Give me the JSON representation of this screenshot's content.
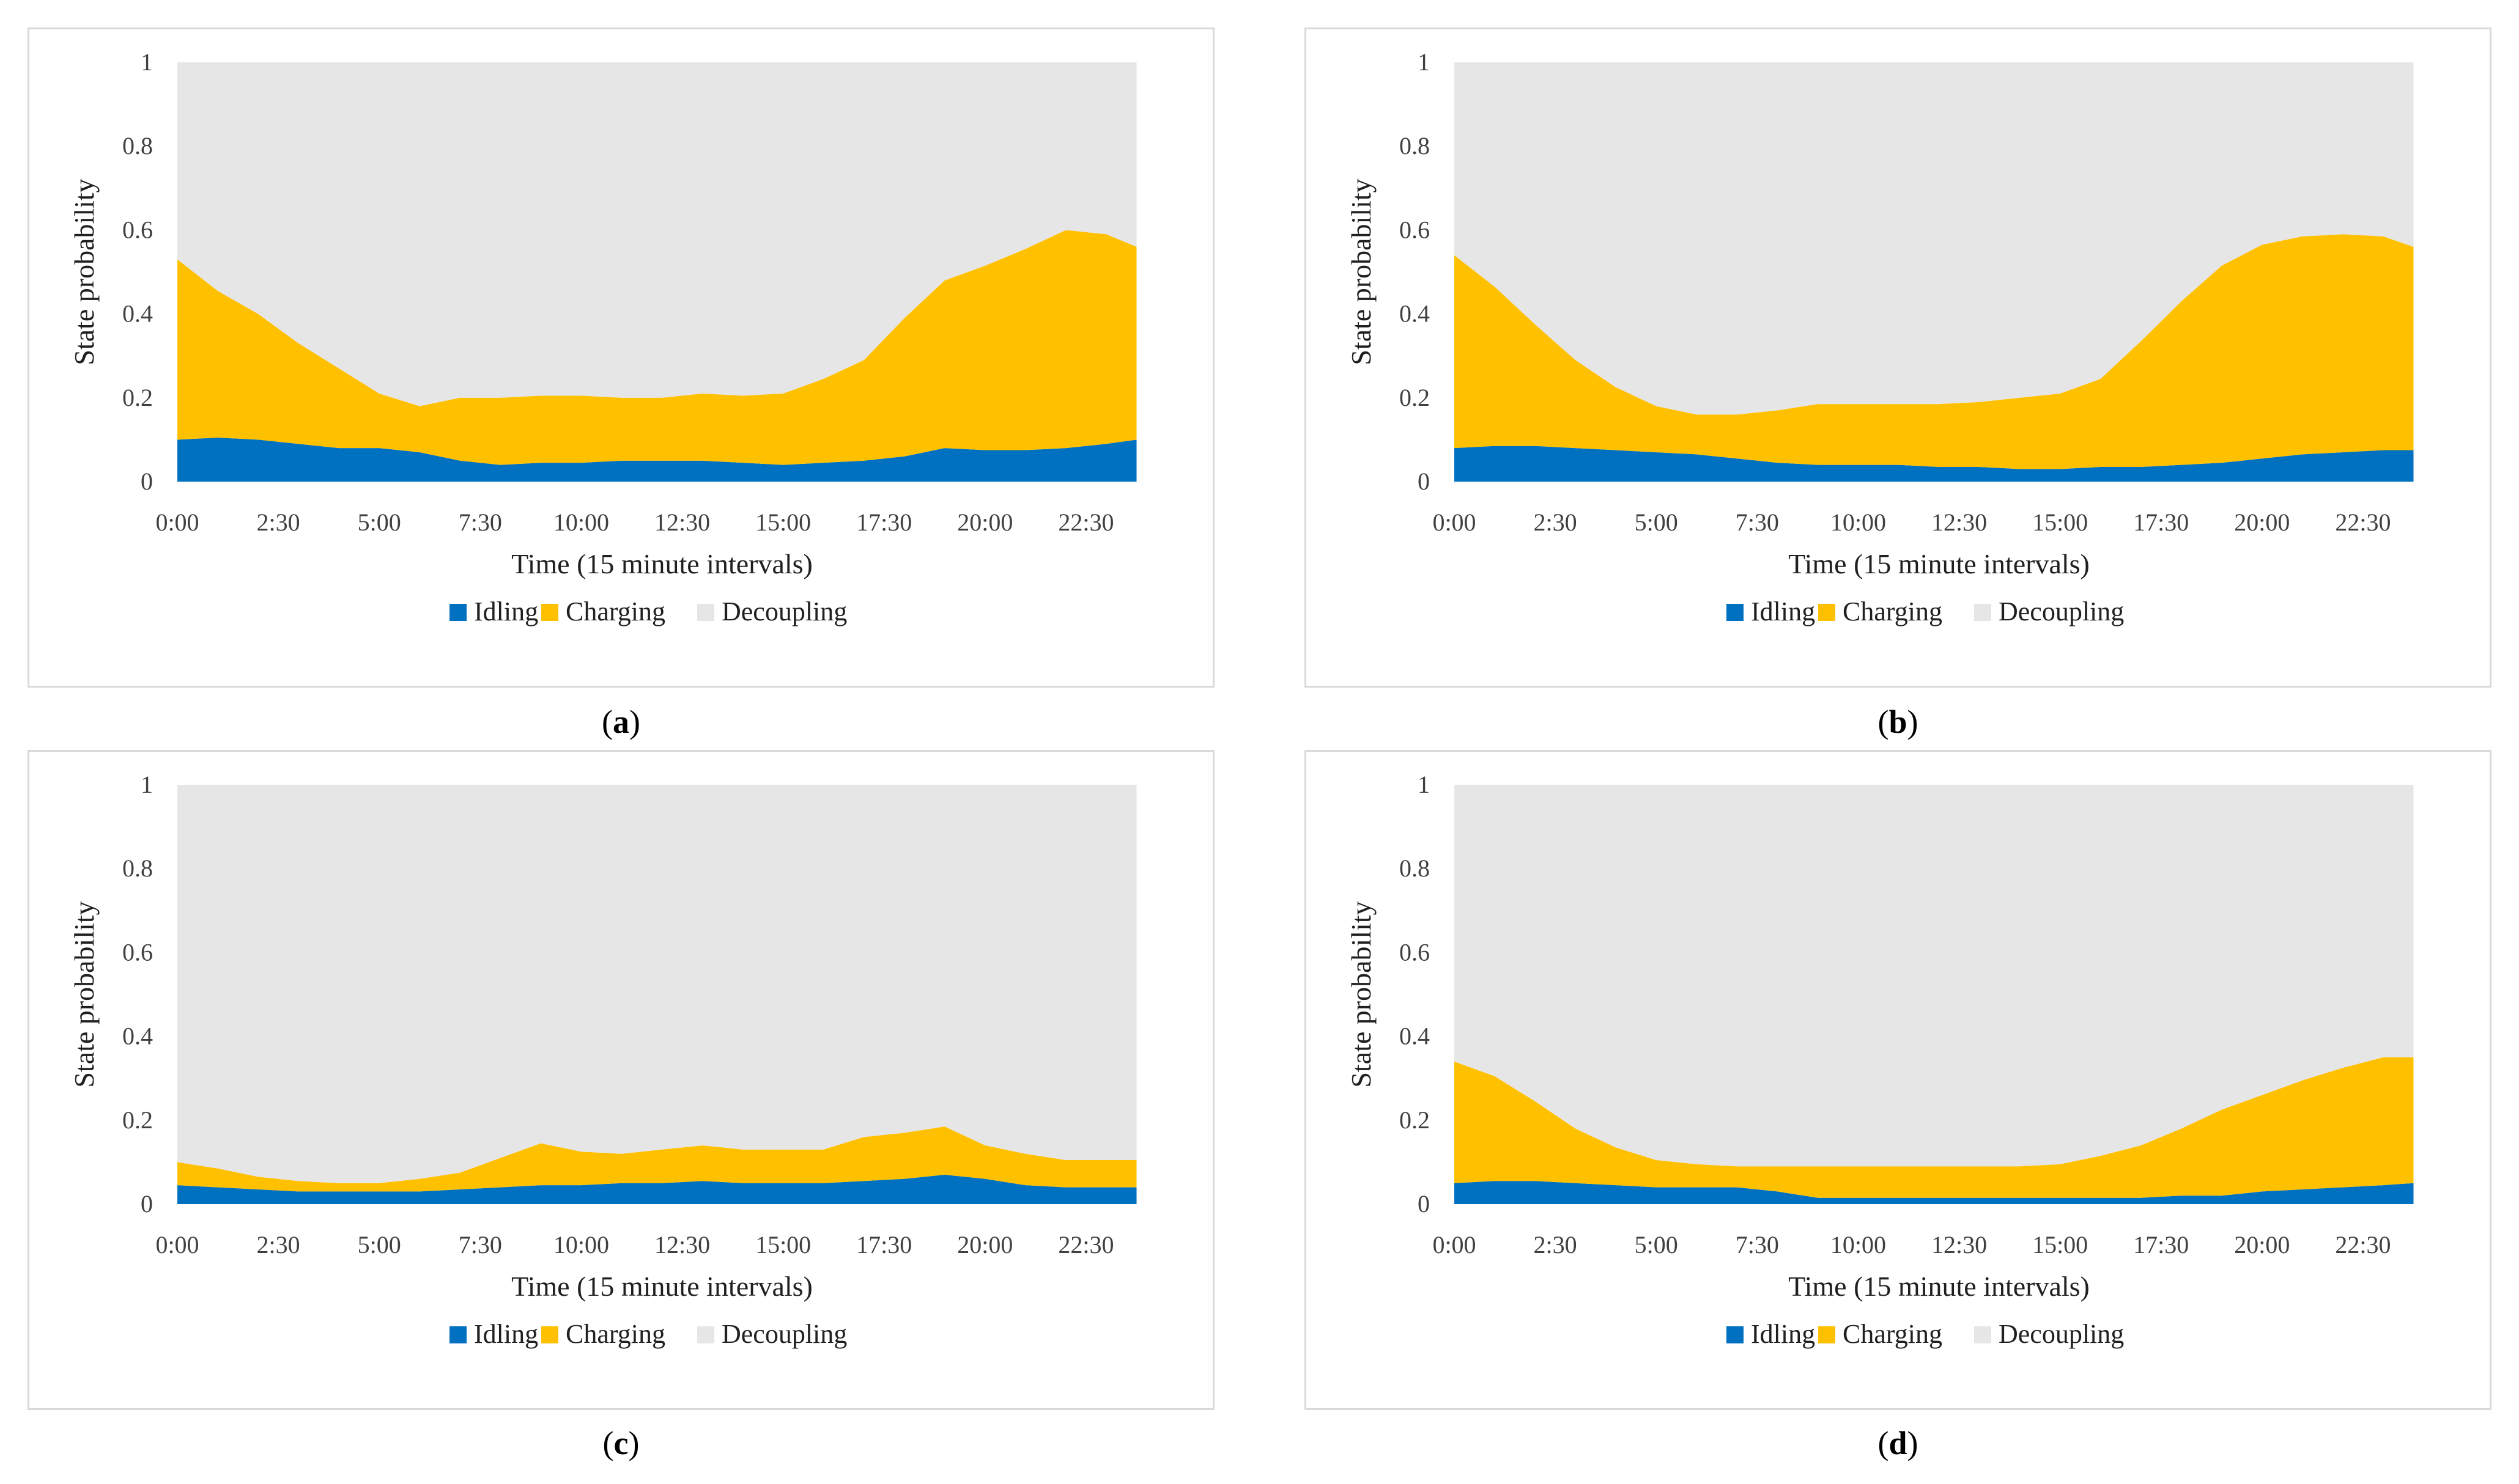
{
  "colors": {
    "idling": "#0070c0",
    "charging": "#ffc000",
    "decoupling": "#e7e6e6"
  },
  "panels": [
    {
      "id": "a",
      "caption_letter": "a"
    },
    {
      "id": "b",
      "caption_letter": "b"
    },
    {
      "id": "c",
      "caption_letter": "c"
    },
    {
      "id": "d",
      "caption_letter": "d"
    }
  ],
  "chart_data": [
    {
      "type": "area",
      "stacked": true,
      "panel": "a",
      "xlabel": "Time (15 minute intervals)",
      "ylabel": "State probability",
      "ylim": [
        0,
        1
      ],
      "yticks": [
        "0",
        "0.2",
        "0.4",
        "0.6",
        "0.8",
        "1"
      ],
      "xticks": [
        "0:00",
        "2:30",
        "5:00",
        "7:30",
        "10:00",
        "12:30",
        "15:00",
        "17:30",
        "20:00",
        "22:30"
      ],
      "x_hours": [
        0,
        1,
        2,
        3,
        4,
        5,
        6,
        7,
        8,
        9,
        10,
        11,
        12,
        13,
        14,
        15,
        16,
        17,
        18,
        19,
        20,
        21,
        22,
        23,
        23.75
      ],
      "series": [
        {
          "name": "Idling",
          "values": [
            0.1,
            0.105,
            0.1,
            0.09,
            0.08,
            0.08,
            0.07,
            0.05,
            0.04,
            0.045,
            0.045,
            0.05,
            0.05,
            0.05,
            0.045,
            0.04,
            0.045,
            0.05,
            0.06,
            0.08,
            0.075,
            0.075,
            0.08,
            0.09,
            0.1
          ]
        },
        {
          "name": "Charging",
          "values": [
            0.43,
            0.35,
            0.3,
            0.24,
            0.19,
            0.13,
            0.11,
            0.15,
            0.16,
            0.16,
            0.16,
            0.15,
            0.15,
            0.16,
            0.16,
            0.17,
            0.2,
            0.24,
            0.33,
            0.4,
            0.44,
            0.48,
            0.52,
            0.5,
            0.46
          ]
        },
        {
          "name": "Decoupling",
          "values": [
            0.47,
            0.545,
            0.6,
            0.67,
            0.73,
            0.79,
            0.82,
            0.8,
            0.8,
            0.795,
            0.795,
            0.8,
            0.8,
            0.79,
            0.795,
            0.79,
            0.755,
            0.71,
            0.61,
            0.52,
            0.485,
            0.445,
            0.4,
            0.41,
            0.44
          ]
        }
      ],
      "legend": [
        "Idling",
        "Charging",
        "Decoupling"
      ],
      "legend_position": "bottom"
    },
    {
      "type": "area",
      "stacked": true,
      "panel": "b",
      "xlabel": "Time (15 minute intervals)",
      "ylabel": "State probability",
      "ylim": [
        0,
        1
      ],
      "yticks": [
        "0",
        "0.2",
        "0.4",
        "0.6",
        "0.8",
        "1"
      ],
      "xticks": [
        "0:00",
        "2:30",
        "5:00",
        "7:30",
        "10:00",
        "12:30",
        "15:00",
        "17:30",
        "20:00",
        "22:30"
      ],
      "x_hours": [
        0,
        1,
        2,
        3,
        4,
        5,
        6,
        7,
        8,
        9,
        10,
        11,
        12,
        13,
        14,
        15,
        16,
        17,
        18,
        19,
        20,
        21,
        22,
        23,
        23.75
      ],
      "series": [
        {
          "name": "Idling",
          "values": [
            0.08,
            0.085,
            0.085,
            0.08,
            0.075,
            0.07,
            0.065,
            0.055,
            0.045,
            0.04,
            0.04,
            0.04,
            0.035,
            0.035,
            0.03,
            0.03,
            0.035,
            0.035,
            0.04,
            0.045,
            0.055,
            0.065,
            0.07,
            0.075,
            0.075
          ]
        },
        {
          "name": "Charging",
          "values": [
            0.46,
            0.38,
            0.29,
            0.21,
            0.15,
            0.11,
            0.095,
            0.105,
            0.125,
            0.145,
            0.145,
            0.145,
            0.15,
            0.155,
            0.17,
            0.18,
            0.21,
            0.3,
            0.39,
            0.47,
            0.51,
            0.52,
            0.52,
            0.51,
            0.485
          ]
        },
        {
          "name": "Decoupling",
          "values": [
            0.46,
            0.535,
            0.625,
            0.71,
            0.775,
            0.82,
            0.84,
            0.84,
            0.83,
            0.815,
            0.815,
            0.815,
            0.815,
            0.81,
            0.8,
            0.79,
            0.755,
            0.665,
            0.57,
            0.485,
            0.435,
            0.415,
            0.41,
            0.415,
            0.44
          ]
        }
      ],
      "legend": [
        "Idling",
        "Charging",
        "Decoupling"
      ],
      "legend_position": "bottom"
    },
    {
      "type": "area",
      "stacked": true,
      "panel": "c",
      "xlabel": "Time (15 minute intervals)",
      "ylabel": "State probability",
      "ylim": [
        0,
        1
      ],
      "yticks": [
        "0",
        "0.2",
        "0.4",
        "0.6",
        "0.8",
        "1"
      ],
      "xticks": [
        "0:00",
        "2:30",
        "5:00",
        "7:30",
        "10:00",
        "12:30",
        "15:00",
        "17:30",
        "20:00",
        "22:30"
      ],
      "x_hours": [
        0,
        1,
        2,
        3,
        4,
        5,
        6,
        7,
        8,
        9,
        10,
        11,
        12,
        13,
        14,
        15,
        16,
        17,
        18,
        19,
        20,
        21,
        22,
        23,
        23.75
      ],
      "series": [
        {
          "name": "Idling",
          "values": [
            0.045,
            0.04,
            0.035,
            0.03,
            0.03,
            0.03,
            0.03,
            0.035,
            0.04,
            0.045,
            0.045,
            0.05,
            0.05,
            0.055,
            0.05,
            0.05,
            0.05,
            0.055,
            0.06,
            0.07,
            0.06,
            0.045,
            0.04,
            0.04,
            0.04
          ]
        },
        {
          "name": "Charging",
          "values": [
            0.055,
            0.045,
            0.03,
            0.025,
            0.02,
            0.02,
            0.03,
            0.04,
            0.07,
            0.1,
            0.08,
            0.07,
            0.08,
            0.085,
            0.08,
            0.08,
            0.08,
            0.105,
            0.11,
            0.115,
            0.08,
            0.075,
            0.065,
            0.065,
            0.065
          ]
        },
        {
          "name": "Decoupling",
          "values": [
            0.9,
            0.915,
            0.935,
            0.945,
            0.95,
            0.95,
            0.94,
            0.925,
            0.89,
            0.855,
            0.875,
            0.88,
            0.87,
            0.86,
            0.87,
            0.87,
            0.87,
            0.84,
            0.83,
            0.815,
            0.86,
            0.88,
            0.895,
            0.895,
            0.895
          ]
        }
      ],
      "legend": [
        "Idling",
        "Charging",
        "Decoupling"
      ],
      "legend_position": "bottom"
    },
    {
      "type": "area",
      "stacked": true,
      "panel": "d",
      "xlabel": "Time (15 minute intervals)",
      "ylabel": "State probability",
      "ylim": [
        0,
        1
      ],
      "yticks": [
        "0",
        "0.2",
        "0.4",
        "0.6",
        "0.8",
        "1"
      ],
      "xticks": [
        "0:00",
        "2:30",
        "5:00",
        "7:30",
        "10:00",
        "12:30",
        "15:00",
        "17:30",
        "20:00",
        "22:30"
      ],
      "x_hours": [
        0,
        1,
        2,
        3,
        4,
        5,
        6,
        7,
        8,
        9,
        10,
        11,
        12,
        13,
        14,
        15,
        16,
        17,
        18,
        19,
        20,
        21,
        22,
        23,
        23.75
      ],
      "series": [
        {
          "name": "Idling",
          "values": [
            0.05,
            0.055,
            0.055,
            0.05,
            0.045,
            0.04,
            0.04,
            0.04,
            0.03,
            0.015,
            0.015,
            0.015,
            0.015,
            0.015,
            0.015,
            0.015,
            0.015,
            0.015,
            0.02,
            0.02,
            0.03,
            0.035,
            0.04,
            0.045,
            0.05
          ]
        },
        {
          "name": "Charging",
          "values": [
            0.29,
            0.25,
            0.19,
            0.13,
            0.09,
            0.065,
            0.055,
            0.05,
            0.06,
            0.075,
            0.075,
            0.075,
            0.075,
            0.075,
            0.075,
            0.08,
            0.1,
            0.125,
            0.16,
            0.205,
            0.23,
            0.26,
            0.285,
            0.305,
            0.3
          ]
        },
        {
          "name": "Decoupling",
          "values": [
            0.66,
            0.695,
            0.755,
            0.82,
            0.865,
            0.895,
            0.905,
            0.91,
            0.91,
            0.91,
            0.91,
            0.91,
            0.91,
            0.91,
            0.91,
            0.905,
            0.885,
            0.86,
            0.82,
            0.775,
            0.74,
            0.705,
            0.675,
            0.65,
            0.65
          ]
        }
      ],
      "legend": [
        "Idling",
        "Charging",
        "Decoupling"
      ],
      "legend_position": "bottom"
    }
  ]
}
